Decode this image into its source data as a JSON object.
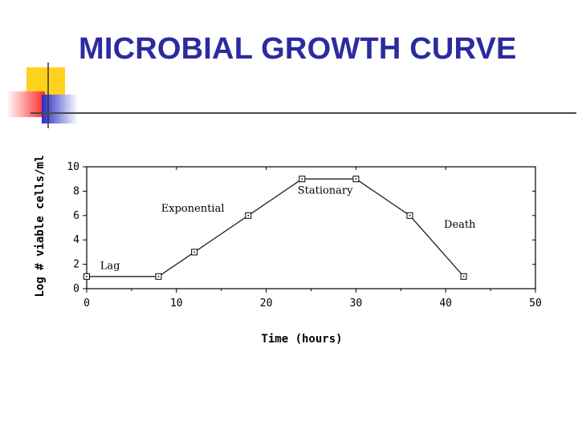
{
  "slide": {
    "title": "MICROBIAL GROWTH CURVE"
  },
  "colors": {
    "title": "#2b2ba0",
    "decor_yellow": "#ffd21e",
    "decor_red": "#ff2a2a",
    "decor_blue": "#2a2ac8"
  },
  "chart_data": {
    "type": "line",
    "title": "",
    "xlabel": "Time (hours)",
    "ylabel": "Log # viable cells/ml",
    "xlim": [
      0,
      50
    ],
    "ylim": [
      0,
      10
    ],
    "xticks": [
      0,
      10,
      20,
      30,
      40,
      50
    ],
    "yticks": [
      0,
      2,
      4,
      6,
      8,
      10
    ],
    "grid": false,
    "legend": "none",
    "series": [
      {
        "x": [
          0,
          8,
          12,
          18,
          24,
          30,
          36,
          42
        ],
        "y": [
          1,
          1,
          3,
          6,
          9,
          9,
          6,
          1
        ]
      }
    ],
    "annotations": [
      {
        "text": "Lag",
        "x": 1.5,
        "y": 1.6
      },
      {
        "text": "Exponential",
        "x": 8.3,
        "y": 6.3
      },
      {
        "text": "Stationary",
        "x": 23.5,
        "y": 7.8
      },
      {
        "text": "Death",
        "x": 39.8,
        "y": 5.0
      }
    ]
  }
}
